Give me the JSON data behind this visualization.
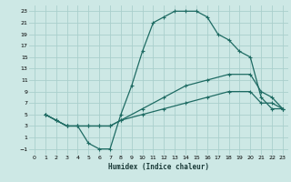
{
  "xlabel": "Humidex (Indice chaleur)",
  "bg_color": "#cde8e5",
  "grid_color": "#aacfcc",
  "line_color": "#1e6b63",
  "xlim": [
    -0.5,
    23.5
  ],
  "ylim": [
    -2,
    24
  ],
  "xticks": [
    0,
    1,
    2,
    3,
    4,
    5,
    6,
    7,
    8,
    9,
    10,
    11,
    12,
    13,
    14,
    15,
    16,
    17,
    18,
    19,
    20,
    21,
    22,
    23
  ],
  "yticks": [
    -1,
    1,
    3,
    5,
    7,
    9,
    11,
    13,
    15,
    17,
    19,
    21,
    23
  ],
  "line1_x": [
    1,
    2,
    3,
    4,
    5,
    6,
    7,
    8,
    9,
    10,
    11,
    12,
    13,
    14,
    15,
    16,
    17,
    18,
    19,
    20,
    21,
    22,
    23
  ],
  "line1_y": [
    5,
    4,
    3,
    3,
    0,
    -1,
    -1,
    5,
    10,
    16,
    21,
    22,
    23,
    23,
    23,
    22,
    19,
    18,
    16,
    15,
    8,
    6,
    6
  ],
  "line2_x": [
    1,
    2,
    3,
    4,
    5,
    6,
    7,
    8,
    10,
    12,
    14,
    16,
    18,
    20,
    21,
    22,
    23
  ],
  "line2_y": [
    5,
    4,
    3,
    3,
    3,
    3,
    3,
    4,
    6,
    8,
    10,
    11,
    12,
    12,
    9,
    8,
    6
  ],
  "line3_x": [
    1,
    2,
    3,
    4,
    5,
    6,
    7,
    8,
    10,
    12,
    14,
    16,
    18,
    20,
    21,
    22,
    23
  ],
  "line3_y": [
    5,
    4,
    3,
    3,
    3,
    3,
    3,
    4,
    5,
    6,
    7,
    8,
    9,
    9,
    7,
    7,
    6
  ]
}
